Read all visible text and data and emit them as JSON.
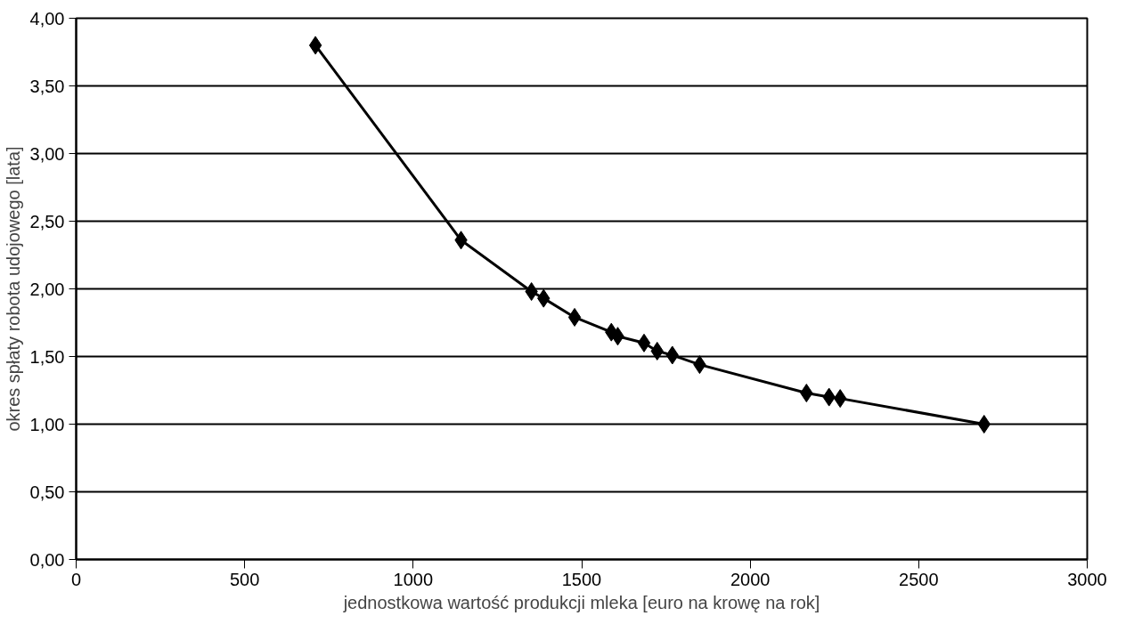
{
  "chart_data": {
    "type": "line",
    "xlabel": "jednostkowa wartość produkcji mleka [euro na krowę na rok]",
    "ylabel": "okres spłaty robota udojowego [lata]",
    "x": [
      710,
      1142,
      1351,
      1387,
      1479,
      1588,
      1607,
      1685,
      1724,
      1769,
      1850,
      2167,
      2234,
      2267,
      2694
    ],
    "series": [
      {
        "color": "#000000",
        "values": [
          3.8,
          2.36,
          1.98,
          1.93,
          1.79,
          1.68,
          1.65,
          1.6,
          1.54,
          1.51,
          1.44,
          1.23,
          1.2,
          1.19,
          1.0
        ]
      }
    ],
    "marker": "diamond",
    "line_style": "solid",
    "grid": "y",
    "xlim": [
      0,
      3000
    ],
    "xticks": [
      0,
      500,
      1000,
      1500,
      2000,
      2500,
      3000
    ],
    "ylim": [
      0,
      4
    ],
    "yticks": [
      {
        "value": 0,
        "label": "0,00"
      },
      {
        "value": 0.5,
        "label": "0,50"
      },
      {
        "value": 1,
        "label": "1,00"
      },
      {
        "value": 1.5,
        "label": "1,50"
      },
      {
        "value": 2,
        "label": "2,00"
      },
      {
        "value": 2.5,
        "label": "2,50"
      },
      {
        "value": 3,
        "label": "3,00"
      },
      {
        "value": 3.5,
        "label": "3,50"
      },
      {
        "value": 4,
        "label": "4,00"
      }
    ]
  }
}
